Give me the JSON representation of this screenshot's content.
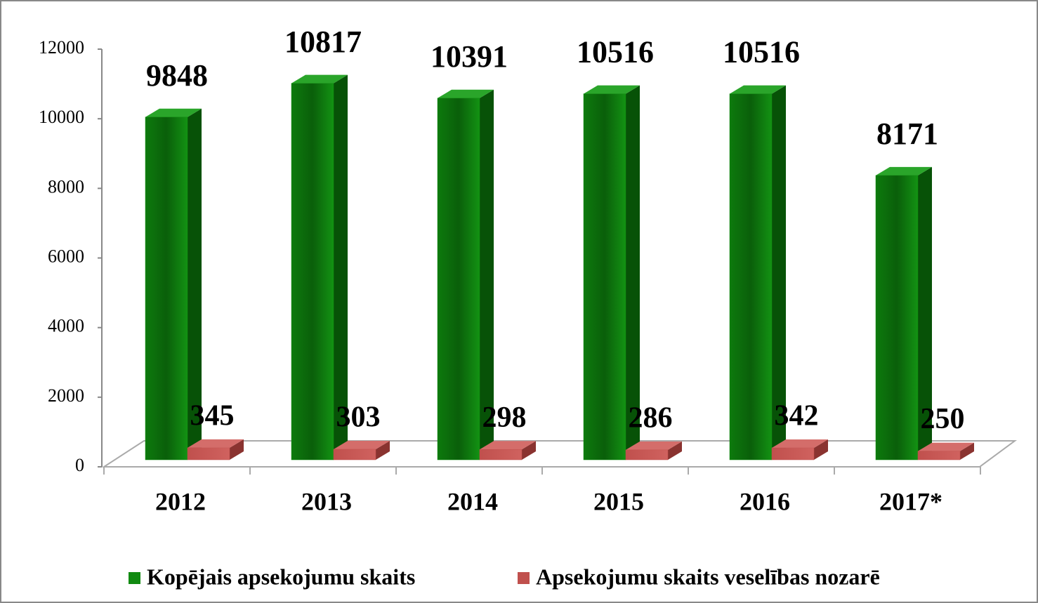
{
  "chart_data": {
    "type": "bar3d",
    "categories": [
      "2012",
      "2013",
      "2014",
      "2015",
      "2016",
      "2017*"
    ],
    "series": [
      {
        "name": "Kopējais apsekojumu skaits",
        "color": "#118a11",
        "values": [
          9848,
          10817,
          10391,
          10516,
          10516,
          8171
        ]
      },
      {
        "name": "Apsekojumu skaits veselības nozarē",
        "color": "#c0504d",
        "values": [
          345,
          303,
          298,
          286,
          342,
          250
        ]
      }
    ],
    "ylim": [
      0,
      12000
    ],
    "yticks": [
      0,
      2000,
      4000,
      6000,
      8000,
      10000,
      12000
    ],
    "legend": "bottom"
  }
}
